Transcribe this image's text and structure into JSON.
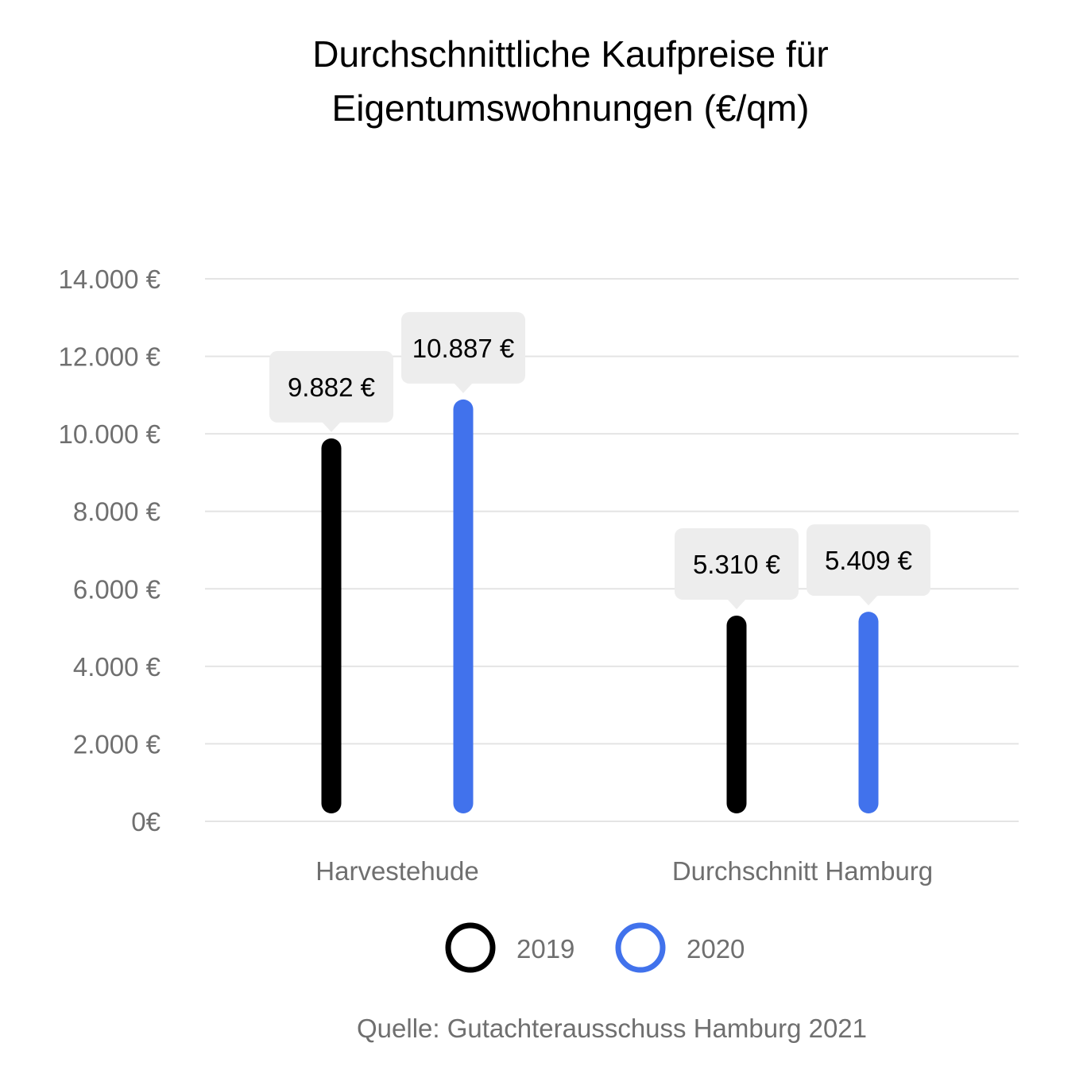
{
  "chart_data": {
    "type": "bar",
    "title_lines": [
      "Durchschnittliche Kaufpreise für",
      "Eigentumswohnungen (€/qm)"
    ],
    "categories": [
      "Harvestehude",
      "Durchschnitt Hamburg"
    ],
    "series": [
      {
        "name": "2019",
        "color": "#000000",
        "values": [
          9882,
          5310
        ],
        "labels": [
          "9.882 €",
          "5.310 €"
        ]
      },
      {
        "name": "2020",
        "color": "#4172ec",
        "values": [
          10887,
          5409
        ],
        "labels": [
          "10.887 €",
          "5.409 €"
        ]
      }
    ],
    "ylim": [
      0,
      14000
    ],
    "yticks": [
      0,
      2000,
      4000,
      6000,
      8000,
      10000,
      12000,
      14000
    ],
    "ytick_labels": [
      "0€",
      "2.000 €",
      "4.000 €",
      "6.000 €",
      "8.000 €",
      "10.000 €",
      "12.000 €",
      "14.000 €"
    ],
    "grid": true,
    "legend_position": "bottom",
    "gridline_color": "#e4e4e4",
    "label_box_color": "#ededed"
  },
  "source": "Quelle: Gutachterausschuss Hamburg 2021"
}
